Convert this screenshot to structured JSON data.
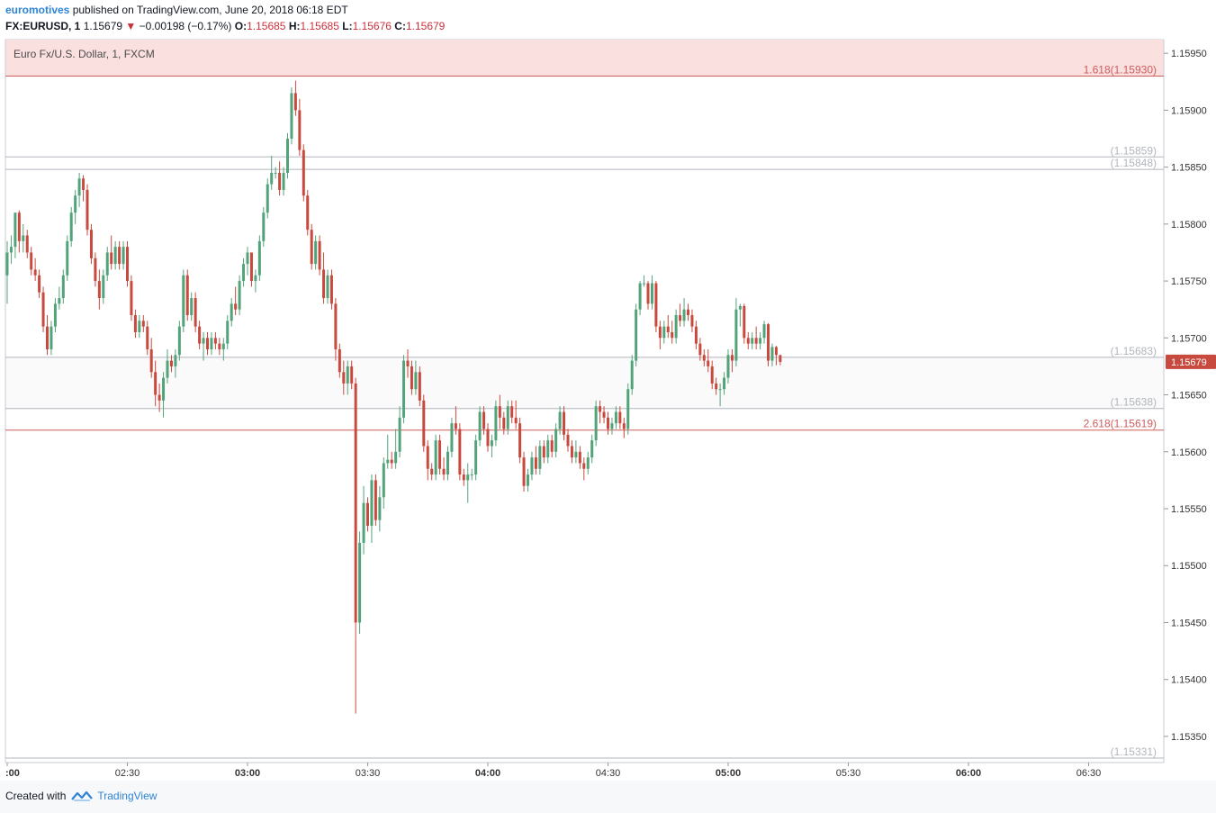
{
  "header": {
    "author": "euromotives",
    "published_text": "published on TradingView.com, June 20, 2018 06:18 EDT",
    "symbol": "FX:EURUSD, 1",
    "last": "1.15679",
    "change_arrow": "▼",
    "change": "−0.00198 (−0.17%)",
    "o_label": "O:",
    "o_value": "1.15685",
    "h_label": "H:",
    "h_value": "1.15685",
    "l_label": "L:",
    "l_value": "1.15676",
    "c_label": "C:",
    "c_value": "1.15679"
  },
  "footer": {
    "created_with": "Created with",
    "brand": "TradingView"
  },
  "colors": {
    "up": "#53a37a",
    "down": "#c84a3f",
    "fib_red": "#cd5c5c",
    "grey_line": "#b2b5be",
    "top_band": "#fbe0e0",
    "axis_text": "#333333"
  },
  "chart_data": {
    "type": "candlestick",
    "title": "Euro Fx/U.S. Dollar, 1, FXCM",
    "y_ticks": [
      1.1535,
      1.154,
      1.1545,
      1.155,
      1.1555,
      1.156,
      1.1565,
      1.157,
      1.1575,
      1.158,
      1.1585,
      1.159,
      1.1595
    ],
    "y_tick_labels": [
      "1.15350",
      "1.15400",
      "1.15450",
      "1.15500",
      "1.15550",
      "1.15600",
      "1.15650",
      "1.15700",
      "1.15750",
      "1.15800",
      "1.15850",
      "1.15900",
      "1.15950"
    ],
    "ylim": [
      1.15327,
      1.15962
    ],
    "x_ticks": [
      {
        "label": ":00",
        "bold": true,
        "minute": 0
      },
      {
        "label": "02:30",
        "bold": false,
        "minute": 30
      },
      {
        "label": "03:00",
        "bold": true,
        "minute": 60
      },
      {
        "label": "03:30",
        "bold": false,
        "minute": 90
      },
      {
        "label": "04:00",
        "bold": true,
        "minute": 120
      },
      {
        "label": "04:30",
        "bold": false,
        "minute": 150
      },
      {
        "label": "05:00",
        "bold": true,
        "minute": 180
      },
      {
        "label": "05:30",
        "bold": false,
        "minute": 210
      },
      {
        "label": "06:00",
        "bold": true,
        "minute": 240
      },
      {
        "label": "06:30",
        "bold": false,
        "minute": 270
      }
    ],
    "fib_levels": [
      {
        "label": "1.618(1.15930)",
        "price": 1.1593,
        "color": "#cd5c5c"
      },
      {
        "label": "(1.15859)",
        "price": 1.15859,
        "color": "#b2b5be"
      },
      {
        "label": "(1.15848)",
        "price": 1.15848,
        "color": "#b2b5be"
      },
      {
        "label": "(1.15683)",
        "price": 1.15683,
        "color": "#b2b5be"
      },
      {
        "label": "(1.15638)",
        "price": 1.15638,
        "color": "#b2b5be"
      },
      {
        "label": "2.618(1.15619)",
        "price": 1.15619,
        "color": "#cd5c5c"
      },
      {
        "label": "(1.15331)",
        "price": 1.15331,
        "color": "#b2b5be"
      }
    ],
    "band_zone": [
      1.15638,
      1.15683
    ],
    "top_band_zone": [
      1.1593,
      1.15962
    ],
    "last_price_label": "1.15679",
    "candles": [
      [
        1.15755,
        1.15785,
        1.1573,
        1.15775
      ],
      [
        1.15775,
        1.1579,
        1.15765,
        1.1578
      ],
      [
        1.1578,
        1.1581,
        1.1577,
        1.1581
      ],
      [
        1.1581,
        1.15812,
        1.15775,
        1.15785
      ],
      [
        1.15785,
        1.158,
        1.15775,
        1.1579
      ],
      [
        1.1579,
        1.15795,
        1.1577,
        1.15775
      ],
      [
        1.15775,
        1.1578,
        1.15755,
        1.1576
      ],
      [
        1.1576,
        1.1577,
        1.1575,
        1.15755
      ],
      [
        1.15755,
        1.1576,
        1.15735,
        1.1574
      ],
      [
        1.1574,
        1.15745,
        1.15705,
        1.1571
      ],
      [
        1.1571,
        1.1572,
        1.15685,
        1.1569
      ],
      [
        1.1569,
        1.15715,
        1.15685,
        1.1571
      ],
      [
        1.1571,
        1.15735,
        1.15705,
        1.1573
      ],
      [
        1.1573,
        1.15745,
        1.15725,
        1.15735
      ],
      [
        1.15735,
        1.1576,
        1.1573,
        1.15755
      ],
      [
        1.15755,
        1.1579,
        1.1575,
        1.15785
      ],
      [
        1.15785,
        1.15815,
        1.1578,
        1.1581
      ],
      [
        1.1581,
        1.1583,
        1.158,
        1.15825
      ],
      [
        1.15825,
        1.15845,
        1.15815,
        1.1584
      ],
      [
        1.1584,
        1.15843,
        1.1582,
        1.1583
      ],
      [
        1.1583,
        1.15835,
        1.1579,
        1.15795
      ],
      [
        1.15795,
        1.158,
        1.15765,
        1.1577
      ],
      [
        1.1577,
        1.15775,
        1.15745,
        1.1575
      ],
      [
        1.1575,
        1.1576,
        1.15725,
        1.15735
      ],
      [
        1.15735,
        1.1576,
        1.1573,
        1.15755
      ],
      [
        1.15755,
        1.1578,
        1.1575,
        1.15775
      ],
      [
        1.15775,
        1.1579,
        1.1576,
        1.15765
      ],
      [
        1.15765,
        1.15785,
        1.1576,
        1.1578
      ],
      [
        1.1578,
        1.15785,
        1.1576,
        1.15765
      ],
      [
        1.15765,
        1.15785,
        1.1576,
        1.1578
      ],
      [
        1.1578,
        1.15785,
        1.15745,
        1.1575
      ],
      [
        1.1575,
        1.15755,
        1.15715,
        1.1572
      ],
      [
        1.1572,
        1.15725,
        1.157,
        1.15705
      ],
      [
        1.15705,
        1.1572,
        1.157,
        1.15715
      ],
      [
        1.15715,
        1.1572,
        1.15705,
        1.1571
      ],
      [
        1.1571,
        1.15715,
        1.15685,
        1.1569
      ],
      [
        1.1569,
        1.157,
        1.15665,
        1.1567
      ],
      [
        1.1567,
        1.1568,
        1.1564,
        1.1565
      ],
      [
        1.1565,
        1.1566,
        1.15635,
        1.15645
      ],
      [
        1.15645,
        1.1567,
        1.1563,
        1.15665
      ],
      [
        1.15665,
        1.1569,
        1.1566,
        1.1568
      ],
      [
        1.1568,
        1.15685,
        1.1567,
        1.15675
      ],
      [
        1.15675,
        1.1569,
        1.15665,
        1.15685
      ],
      [
        1.15685,
        1.15715,
        1.1568,
        1.1571
      ],
      [
        1.1571,
        1.1576,
        1.15705,
        1.15755
      ],
      [
        1.15755,
        1.1576,
        1.15715,
        1.1572
      ],
      [
        1.1572,
        1.1574,
        1.15715,
        1.15735
      ],
      [
        1.15735,
        1.1574,
        1.15705,
        1.1571
      ],
      [
        1.1571,
        1.15715,
        1.1569,
        1.15695
      ],
      [
        1.15695,
        1.15705,
        1.1568,
        1.157
      ],
      [
        1.157,
        1.15705,
        1.15685,
        1.1569
      ],
      [
        1.1569,
        1.15705,
        1.15685,
        1.157
      ],
      [
        1.157,
        1.15705,
        1.1569,
        1.15695
      ],
      [
        1.15695,
        1.157,
        1.15685,
        1.1569
      ],
      [
        1.1569,
        1.157,
        1.1568,
        1.15695
      ],
      [
        1.15695,
        1.1572,
        1.1569,
        1.15715
      ],
      [
        1.15715,
        1.15735,
        1.1571,
        1.1573
      ],
      [
        1.1573,
        1.15745,
        1.1572,
        1.15725
      ],
      [
        1.15725,
        1.15755,
        1.1572,
        1.1575
      ],
      [
        1.1575,
        1.1577,
        1.15745,
        1.15765
      ],
      [
        1.15765,
        1.1578,
        1.15755,
        1.15775
      ],
      [
        1.15775,
        1.15775,
        1.15745,
        1.1575
      ],
      [
        1.1575,
        1.1576,
        1.1574,
        1.15755
      ],
      [
        1.15755,
        1.1579,
        1.1575,
        1.15785
      ],
      [
        1.15785,
        1.15815,
        1.1578,
        1.1581
      ],
      [
        1.1581,
        1.1584,
        1.15805,
        1.15835
      ],
      [
        1.15835,
        1.1586,
        1.1583,
        1.15845
      ],
      [
        1.15845,
        1.1585,
        1.1584,
        1.15845
      ],
      [
        1.15845,
        1.15855,
        1.15825,
        1.1583
      ],
      [
        1.1583,
        1.1585,
        1.15825,
        1.15845
      ],
      [
        1.15845,
        1.1588,
        1.1584,
        1.15875
      ],
      [
        1.15875,
        1.1592,
        1.1587,
        1.15915
      ],
      [
        1.15915,
        1.15926,
        1.15895,
        1.159
      ],
      [
        1.159,
        1.1591,
        1.1586,
        1.15865
      ],
      [
        1.15865,
        1.1587,
        1.1582,
        1.15825
      ],
      [
        1.15825,
        1.1583,
        1.1579,
        1.15795
      ],
      [
        1.15795,
        1.158,
        1.1576,
        1.15765
      ],
      [
        1.15765,
        1.1579,
        1.1576,
        1.15785
      ],
      [
        1.15785,
        1.1579,
        1.15755,
        1.1576
      ],
      [
        1.1576,
        1.15775,
        1.1573,
        1.15735
      ],
      [
        1.15735,
        1.1576,
        1.1573,
        1.15755
      ],
      [
        1.15755,
        1.1576,
        1.15725,
        1.1573
      ],
      [
        1.1573,
        1.15735,
        1.1568,
        1.1569
      ],
      [
        1.1569,
        1.15695,
        1.15665,
        1.1567
      ],
      [
        1.1567,
        1.1568,
        1.1565,
        1.1566
      ],
      [
        1.1566,
        1.1568,
        1.1565,
        1.15675
      ],
      [
        1.15675,
        1.1568,
        1.15655,
        1.1566
      ],
      [
        1.1566,
        1.15665,
        1.1537,
        1.1545
      ],
      [
        1.1545,
        1.1553,
        1.1544,
        1.1552
      ],
      [
        1.1552,
        1.1557,
        1.1551,
        1.15555
      ],
      [
        1.15555,
        1.1556,
        1.1553,
        1.15535
      ],
      [
        1.15535,
        1.1558,
        1.1552,
        1.15575
      ],
      [
        1.15575,
        1.1558,
        1.15535,
        1.1554
      ],
      [
        1.1554,
        1.1557,
        1.1553,
        1.1556
      ],
      [
        1.1556,
        1.15595,
        1.1555,
        1.1559
      ],
      [
        1.1559,
        1.15615,
        1.15585,
        1.15593
      ],
      [
        1.15593,
        1.156,
        1.15585,
        1.1559
      ],
      [
        1.1559,
        1.1562,
        1.15585,
        1.156
      ],
      [
        1.156,
        1.1564,
        1.15595,
        1.1563
      ],
      [
        1.1563,
        1.15685,
        1.15625,
        1.1568
      ],
      [
        1.1568,
        1.1569,
        1.15665,
        1.15675
      ],
      [
        1.15675,
        1.1568,
        1.1565,
        1.15655
      ],
      [
        1.15655,
        1.1568,
        1.1565,
        1.1567
      ],
      [
        1.1567,
        1.15675,
        1.1564,
        1.15645
      ],
      [
        1.15645,
        1.1565,
        1.156,
        1.15605
      ],
      [
        1.15605,
        1.1561,
        1.15575,
        1.15585
      ],
      [
        1.15585,
        1.1559,
        1.15575,
        1.1558
      ],
      [
        1.1558,
        1.15615,
        1.15575,
        1.1561
      ],
      [
        1.1561,
        1.15615,
        1.1558,
        1.15585
      ],
      [
        1.15585,
        1.15595,
        1.15575,
        1.1558
      ],
      [
        1.1558,
        1.15605,
        1.15575,
        1.156
      ],
      [
        1.156,
        1.1563,
        1.15595,
        1.15625
      ],
      [
        1.15625,
        1.1564,
        1.15615,
        1.1562
      ],
      [
        1.1562,
        1.15625,
        1.15575,
        1.1558
      ],
      [
        1.1558,
        1.15585,
        1.1557,
        1.15575
      ],
      [
        1.15575,
        1.1559,
        1.15555,
        1.1558
      ],
      [
        1.1558,
        1.15585,
        1.15575,
        1.1558
      ],
      [
        1.1558,
        1.15615,
        1.15575,
        1.1561
      ],
      [
        1.1561,
        1.1564,
        1.15605,
        1.15635
      ],
      [
        1.15635,
        1.1564,
        1.15615,
        1.1562
      ],
      [
        1.1562,
        1.15625,
        1.156,
        1.15605
      ],
      [
        1.15605,
        1.15615,
        1.15595,
        1.1561
      ],
      [
        1.1561,
        1.15645,
        1.15605,
        1.1564
      ],
      [
        1.1564,
        1.1565,
        1.1562,
        1.1563
      ],
      [
        1.1563,
        1.15635,
        1.15615,
        1.1562
      ],
      [
        1.1562,
        1.15645,
        1.15615,
        1.1564
      ],
      [
        1.1564,
        1.15645,
        1.15625,
        1.1563
      ],
      [
        1.1563,
        1.15645,
        1.1562,
        1.15625
      ],
      [
        1.15625,
        1.1563,
        1.1559,
        1.15595
      ],
      [
        1.15595,
        1.156,
        1.15565,
        1.1557
      ],
      [
        1.1557,
        1.15585,
        1.15565,
        1.1558
      ],
      [
        1.1558,
        1.156,
        1.15575,
        1.15595
      ],
      [
        1.15595,
        1.15605,
        1.1558,
        1.15585
      ],
      [
        1.15585,
        1.1561,
        1.1558,
        1.15605
      ],
      [
        1.15605,
        1.1561,
        1.1559,
        1.15595
      ],
      [
        1.15595,
        1.15615,
        1.1559,
        1.1561
      ],
      [
        1.1561,
        1.15615,
        1.15595,
        1.156
      ],
      [
        1.156,
        1.15625,
        1.15595,
        1.1562
      ],
      [
        1.1562,
        1.1564,
        1.15615,
        1.15635
      ],
      [
        1.15635,
        1.1564,
        1.1561,
        1.15615
      ],
      [
        1.15615,
        1.1562,
        1.156,
        1.15605
      ],
      [
        1.15605,
        1.1561,
        1.1559,
        1.15595
      ],
      [
        1.15595,
        1.1561,
        1.1559,
        1.156
      ],
      [
        1.156,
        1.15605,
        1.15585,
        1.1559
      ],
      [
        1.1559,
        1.15595,
        1.15575,
        1.15585
      ],
      [
        1.15585,
        1.156,
        1.1558,
        1.15595
      ],
      [
        1.15595,
        1.15615,
        1.1559,
        1.1561
      ],
      [
        1.1561,
        1.15645,
        1.15605,
        1.1564
      ],
      [
        1.1564,
        1.15645,
        1.15625,
        1.15635
      ],
      [
        1.15635,
        1.1564,
        1.15625,
        1.1563
      ],
      [
        1.1563,
        1.15635,
        1.15615,
        1.1562
      ],
      [
        1.1562,
        1.1563,
        1.15615,
        1.15625
      ],
      [
        1.15625,
        1.1564,
        1.1562,
        1.15635
      ],
      [
        1.15635,
        1.1564,
        1.1562,
        1.15625
      ],
      [
        1.15625,
        1.1563,
        1.15612,
        1.1562
      ],
      [
        1.1562,
        1.1566,
        1.15615,
        1.15655
      ],
      [
        1.15655,
        1.15685,
        1.1565,
        1.1568
      ],
      [
        1.1568,
        1.1573,
        1.15675,
        1.15725
      ],
      [
        1.15725,
        1.1575,
        1.1572,
        1.15748
      ],
      [
        1.15748,
        1.15755,
        1.15745,
        1.15748
      ],
      [
        1.15748,
        1.1575,
        1.15725,
        1.1573
      ],
      [
        1.1573,
        1.15755,
        1.15725,
        1.15748
      ],
      [
        1.15748,
        1.1575,
        1.15705,
        1.1571
      ],
      [
        1.1571,
        1.15715,
        1.1569,
        1.157
      ],
      [
        1.157,
        1.15715,
        1.15695,
        1.1571
      ],
      [
        1.1571,
        1.1572,
        1.157,
        1.15705
      ],
      [
        1.15705,
        1.15715,
        1.15695,
        1.157
      ],
      [
        1.157,
        1.15725,
        1.15695,
        1.1572
      ],
      [
        1.1572,
        1.1573,
        1.1571,
        1.15715
      ],
      [
        1.15715,
        1.15735,
        1.1571,
        1.15725
      ],
      [
        1.15725,
        1.1573,
        1.15715,
        1.1572
      ],
      [
        1.1572,
        1.15725,
        1.15705,
        1.1571
      ],
      [
        1.1571,
        1.15715,
        1.1569,
        1.15695
      ],
      [
        1.15695,
        1.157,
        1.1568,
        1.15685
      ],
      [
        1.15685,
        1.1569,
        1.15675,
        1.1568
      ],
      [
        1.1568,
        1.1569,
        1.1567,
        1.15675
      ],
      [
        1.15675,
        1.1568,
        1.15655,
        1.1566
      ],
      [
        1.1566,
        1.15665,
        1.1565,
        1.15655
      ],
      [
        1.15655,
        1.1566,
        1.1564,
        1.15655
      ],
      [
        1.15655,
        1.1567,
        1.1565,
        1.15665
      ],
      [
        1.15665,
        1.1569,
        1.1566,
        1.15685
      ],
      [
        1.15685,
        1.1569,
        1.1567,
        1.1568
      ],
      [
        1.1568,
        1.15735,
        1.15675,
        1.15725
      ],
      [
        1.15725,
        1.1573,
        1.1571,
        1.15728
      ],
      [
        1.15728,
        1.1573,
        1.15695,
        1.157
      ],
      [
        1.157,
        1.15705,
        1.1569,
        1.15695
      ],
      [
        1.15695,
        1.15705,
        1.1569,
        1.157
      ],
      [
        1.157,
        1.1571,
        1.1569,
        1.15695
      ],
      [
        1.15695,
        1.15705,
        1.1569,
        1.157
      ],
      [
        1.157,
        1.15715,
        1.15695,
        1.15712
      ],
      [
        1.15712,
        1.15713,
        1.15675,
        1.1568
      ],
      [
        1.1568,
        1.15695,
        1.15675,
        1.15692
      ],
      [
        1.15692,
        1.15693,
        1.15676,
        1.15685
      ],
      [
        1.15685,
        1.15685,
        1.15676,
        1.15679
      ]
    ]
  }
}
